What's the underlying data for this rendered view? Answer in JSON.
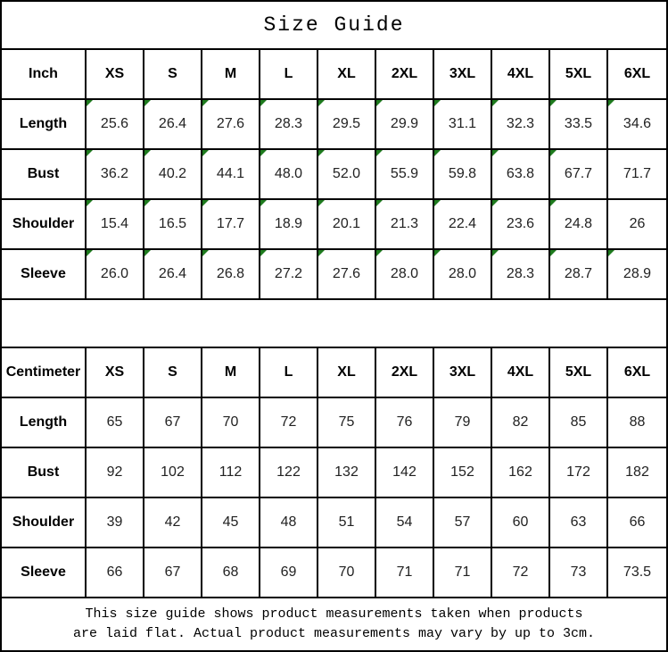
{
  "title": "Size Guide",
  "colors": {
    "border": "#000000",
    "comment_triangle": "#1e7b1e",
    "text": "#1f1f1f",
    "background": "#ffffff"
  },
  "tables": [
    {
      "unit_label": "Inch",
      "columns": [
        "XS",
        "S",
        "M",
        "L",
        "XL",
        "2XL",
        "3XL",
        "4XL",
        "5XL",
        "6XL"
      ],
      "rows": [
        {
          "label": "Length",
          "values": [
            "25.6",
            "26.4",
            "27.6",
            "28.3",
            "29.5",
            "29.9",
            "31.1",
            "32.3",
            "33.5",
            "34.6"
          ],
          "flags": [
            1,
            1,
            1,
            1,
            1,
            1,
            1,
            1,
            1,
            1
          ]
        },
        {
          "label": "Bust",
          "values": [
            "36.2",
            "40.2",
            "44.1",
            "48.0",
            "52.0",
            "55.9",
            "59.8",
            "63.8",
            "67.7",
            "71.7"
          ],
          "flags": [
            1,
            1,
            1,
            1,
            1,
            1,
            1,
            1,
            1,
            0
          ]
        },
        {
          "label": "Shoulder",
          "values": [
            "15.4",
            "16.5",
            "17.7",
            "18.9",
            "20.1",
            "21.3",
            "22.4",
            "23.6",
            "24.8",
            "26"
          ],
          "flags": [
            1,
            1,
            1,
            1,
            1,
            1,
            1,
            1,
            1,
            0
          ]
        },
        {
          "label": "Sleeve",
          "values": [
            "26.0",
            "26.4",
            "26.8",
            "27.2",
            "27.6",
            "28.0",
            "28.0",
            "28.3",
            "28.7",
            "28.9"
          ],
          "flags": [
            1,
            1,
            1,
            1,
            1,
            1,
            1,
            1,
            1,
            1
          ]
        }
      ]
    },
    {
      "unit_label": "Centimeter",
      "columns": [
        "XS",
        "S",
        "M",
        "L",
        "XL",
        "2XL",
        "3XL",
        "4XL",
        "5XL",
        "6XL"
      ],
      "rows": [
        {
          "label": "Length",
          "values": [
            "65",
            "67",
            "70",
            "72",
            "75",
            "76",
            "79",
            "82",
            "85",
            "88"
          ],
          "flags": [
            0,
            0,
            0,
            0,
            0,
            0,
            0,
            0,
            0,
            0
          ]
        },
        {
          "label": "Bust",
          "values": [
            "92",
            "102",
            "112",
            "122",
            "132",
            "142",
            "152",
            "162",
            "172",
            "182"
          ],
          "flags": [
            0,
            0,
            0,
            0,
            0,
            0,
            0,
            0,
            0,
            0
          ]
        },
        {
          "label": "Shoulder",
          "values": [
            "39",
            "42",
            "45",
            "48",
            "51",
            "54",
            "57",
            "60",
            "63",
            "66"
          ],
          "flags": [
            0,
            0,
            0,
            0,
            0,
            0,
            0,
            0,
            0,
            0
          ]
        },
        {
          "label": "Sleeve",
          "values": [
            "66",
            "67",
            "68",
            "69",
            "70",
            "71",
            "71",
            "72",
            "73",
            "73.5"
          ],
          "flags": [
            0,
            0,
            0,
            0,
            0,
            0,
            0,
            0,
            0,
            0
          ]
        }
      ]
    }
  ],
  "footer": {
    "line1": "This size guide shows product measurements taken when products",
    "line2": "are laid flat. Actual product measurements may vary by up to 3cm."
  }
}
